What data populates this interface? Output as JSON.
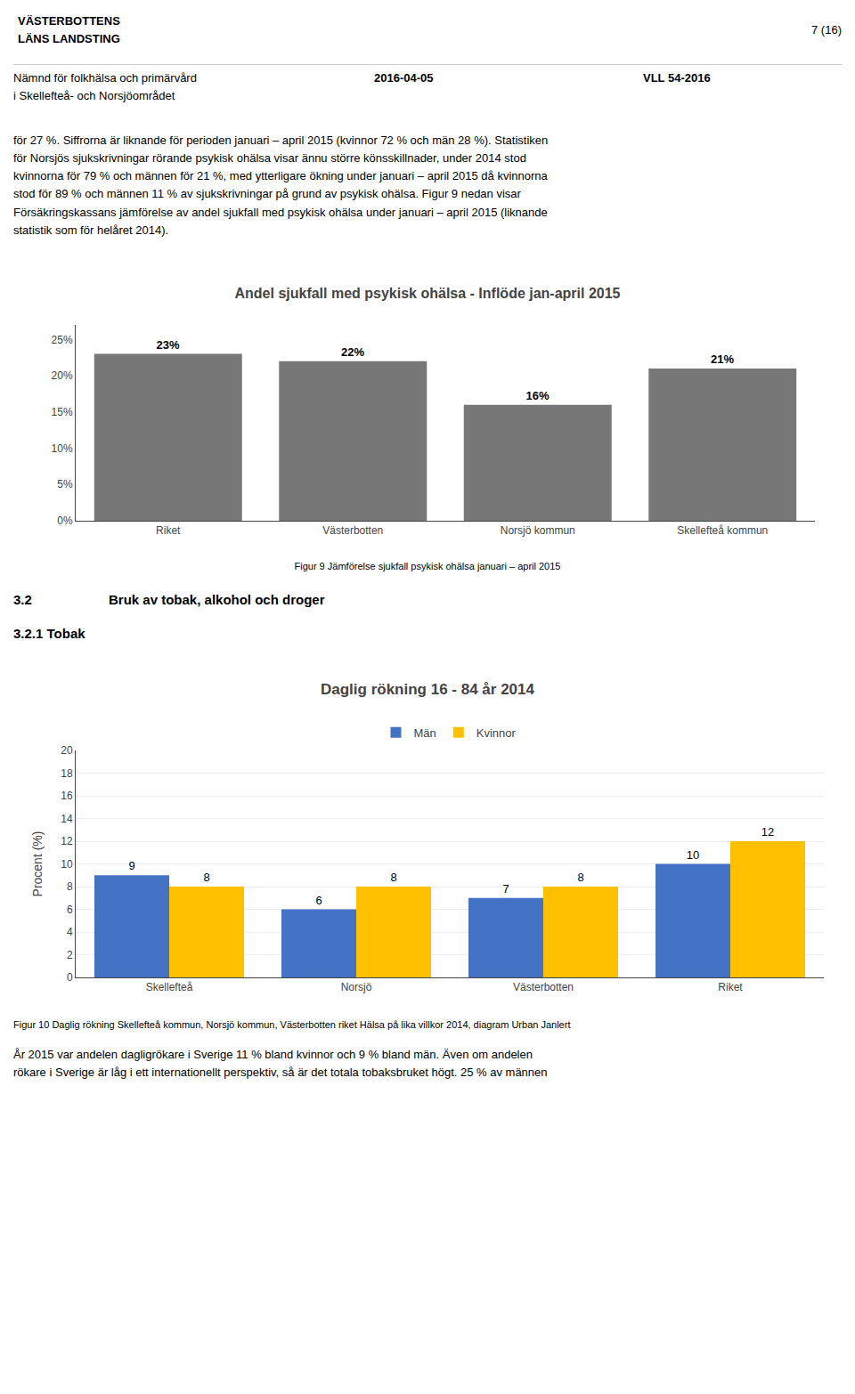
{
  "page": {
    "header": [
      "VÄSTERBOTTENS",
      "LÄNS LANDSTING"
    ],
    "page_number": "7 (16)",
    "subheader": [
      "Nämnd för folkhälsa och primärvård",
      "i Skellefteå- och Norsjöområdet",
      "2016-04-05",
      "VLL 54-2016"
    ],
    "body": [
      "för 27 %. Siffrorna är liknande för perioden januari – april 2015 (kvinnor 72 % och män 28 %). Statistiken",
      "för Norsjös sjukskrivningar rörande psykisk ohälsa visar ännu större könsskillnader, under 2014 stod",
      "kvinnorna för 79 % och männen för 21 %, med ytterligare ökning under januari – april 2015 då kvinnorna",
      "stod för 89 % och männen 11 % av sjukskrivningar på grund av psykisk ohälsa. Figur 9 nedan visar",
      "Försäkringskassans jämförelse av andel sjukfall med psykisk ohälsa under januari – april 2015 (liknande",
      "statistik som för helåret 2014)."
    ],
    "section_heading": [
      "3.2",
      "Bruk av tobak, alkohol och droger"
    ],
    "subsection_heading": "3.2.1 Tobak",
    "footer": [
      "År 2015 var andelen dagligrökare i Sverige 11 % bland kvinnor och 9 % bland män. Även om andelen",
      "rökare i Sverige är låg i ett internationellt perspektiv, så är det totala tobaksbruket högt. 25 % av männen"
    ]
  },
  "chart_data": [
    {
      "type": "bar",
      "title": "Andel sjukfall med psykisk ohälsa - Inflöde jan-april 2015",
      "categories": [
        "Riket",
        "Västerbotten",
        "Norsjö kommun",
        "Skellefteå kommun"
      ],
      "values": [
        23,
        22,
        16,
        21
      ],
      "value_labels": [
        "23%",
        "22%",
        "16%",
        "21%"
      ],
      "data_labels": true,
      "color": "#777777",
      "ylim": [
        0,
        27
      ],
      "yticks": [
        {
          "value": 0,
          "label": "0%"
        },
        {
          "value": 5,
          "label": "5%"
        },
        {
          "value": 10,
          "label": "10%"
        },
        {
          "value": 15,
          "label": "15%"
        },
        {
          "value": 20,
          "label": "20%"
        },
        {
          "value": 25,
          "label": "25%"
        }
      ],
      "grid": false,
      "caption": "Figur 9 Jämförelse sjukfall psykisk ohälsa januari – april 2015"
    },
    {
      "type": "bar",
      "title": "Daglig rökning 16 - 84 år 2014",
      "categories": [
        "Skellefteå",
        "Norsjö",
        "Västerbotten",
        "Riket"
      ],
      "series": [
        {
          "name": "Män",
          "color": "#4472C4",
          "values": [
            9,
            6,
            7,
            10
          ]
        },
        {
          "name": "Kvinnor",
          "color": "#FFC000",
          "values": [
            8,
            8,
            8,
            12
          ]
        }
      ],
      "data_labels": true,
      "ylabel": "Procent (%)",
      "ylim": [
        0,
        20
      ],
      "yticks": [
        0,
        2,
        4,
        6,
        8,
        10,
        12,
        14,
        16,
        18,
        20
      ],
      "grid": true,
      "legend": "top",
      "caption": "Figur 10 Daglig rökning Skellefteå kommun, Norsjö kommun, Västerbotten riket Hälsa på lika villkor 2014, diagram Urban Janlert"
    }
  ]
}
